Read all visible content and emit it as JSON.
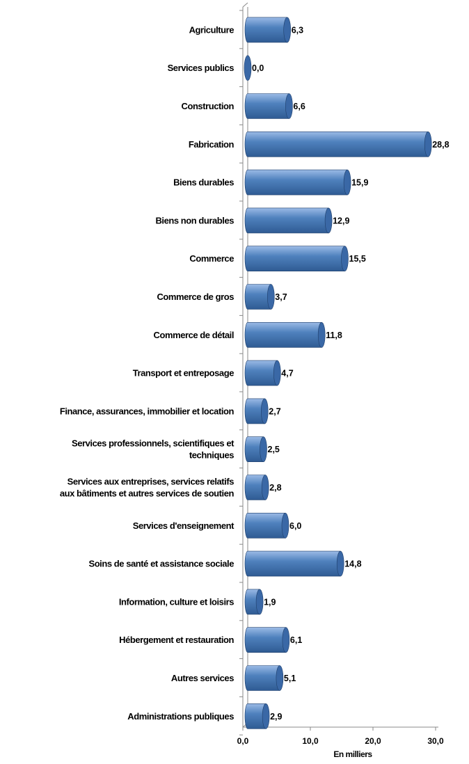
{
  "chart_data": {
    "type": "bar",
    "orientation": "horizontal",
    "style": "3d-cylinder",
    "categories": [
      [
        "Agriculture"
      ],
      [
        "Services publics"
      ],
      [
        "Construction"
      ],
      [
        "Fabrication"
      ],
      [
        "Biens durables"
      ],
      [
        "Biens non durables"
      ],
      [
        "Commerce"
      ],
      [
        "Commerce de gros"
      ],
      [
        "Commerce de détail"
      ],
      [
        "Transport et entreposage"
      ],
      [
        "Finance, assurances, immobilier et location"
      ],
      [
        "Services professionnels, scientifiques et",
        "techniques"
      ],
      [
        "Services aux entreprises, services relatifs",
        "aux bâtiments et autres services de soutien"
      ],
      [
        "Services d'enseignement"
      ],
      [
        "Soins de santé et assistance sociale"
      ],
      [
        "Information, culture et loisirs"
      ],
      [
        "Hébergement et restauration"
      ],
      [
        "Autres services"
      ],
      [
        "Administrations publiques"
      ]
    ],
    "values": [
      6.3,
      0.0,
      6.6,
      28.8,
      15.9,
      12.9,
      15.5,
      3.7,
      11.8,
      4.7,
      2.7,
      2.5,
      2.8,
      6.0,
      14.8,
      1.9,
      6.1,
      5.1,
      2.9
    ],
    "data_labels": [
      "6,3",
      "0,0",
      "6,6",
      "28,8",
      "15,9",
      "12,9",
      "15,5",
      "3,7",
      "11,8",
      "4,7",
      "2,7",
      "2,5",
      "2,8",
      "6,0",
      "14,8",
      "1,9",
      "6,1",
      "5,1",
      "2,9"
    ],
    "xlim": [
      0,
      30
    ],
    "x_ticks": [
      0,
      10,
      20,
      30
    ],
    "x_tick_labels": [
      "0,0",
      "10,0",
      "20,0",
      "30,0"
    ],
    "xlabel": "En milliers",
    "title": "",
    "legend": "none",
    "grid": false,
    "colors": {
      "bar_main": "#4f81bd",
      "bar_light": "#9cbbe6",
      "bar_dark": "#2f5b93",
      "bar_cap": "#3a68a6",
      "bar_outline": "#1f3f6b",
      "axis": "#888888"
    }
  }
}
